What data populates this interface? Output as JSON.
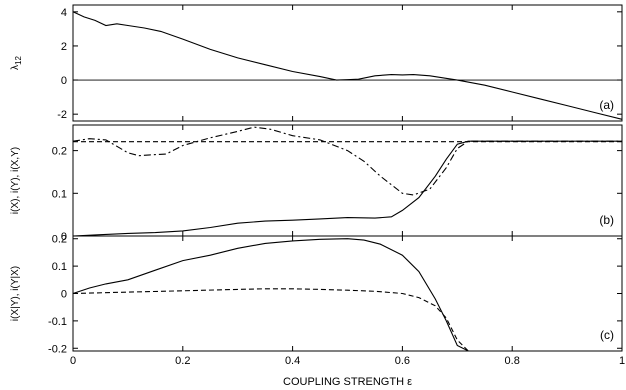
{
  "chart_data": [
    {
      "type": "line",
      "panel_label": "(a)",
      "ylabel": "λ12",
      "ylabel_main": "λ",
      "ylabel_sub": "12",
      "xlim": [
        0,
        1
      ],
      "ylim": [
        -2.4,
        4.4
      ],
      "yticks": [
        -2,
        0,
        2,
        4
      ],
      "hlines": [
        0
      ],
      "series": [
        {
          "style": "solid",
          "x": [
            0,
            0.02,
            0.04,
            0.06,
            0.08,
            0.1,
            0.13,
            0.16,
            0.2,
            0.25,
            0.3,
            0.35,
            0.4,
            0.45,
            0.48,
            0.5,
            0.52,
            0.55,
            0.58,
            0.6,
            0.62,
            0.65,
            0.7,
            0.75,
            0.8,
            0.85,
            0.9,
            0.95,
            1.0
          ],
          "y": [
            4.0,
            3.7,
            3.5,
            3.2,
            3.3,
            3.2,
            3.05,
            2.85,
            2.4,
            1.8,
            1.3,
            0.9,
            0.5,
            0.2,
            0.0,
            0.02,
            0.05,
            0.25,
            0.32,
            0.3,
            0.32,
            0.25,
            0.0,
            -0.3,
            -0.7,
            -1.1,
            -1.5,
            -1.9,
            -2.3
          ]
        }
      ]
    },
    {
      "type": "line",
      "panel_label": "(b)",
      "ylabel": "i(X), i(Y), i(X,Y)",
      "xlim": [
        0,
        1
      ],
      "ylim": [
        0,
        0.26
      ],
      "yticks": [
        0,
        0.1,
        0.2
      ],
      "ytick_labels": [
        "0",
        "0.1",
        "0.2"
      ],
      "series": [
        {
          "style": "dashed",
          "x": [
            0,
            1
          ],
          "y": [
            0.221,
            0.221
          ]
        },
        {
          "style": "dashdot",
          "x": [
            0,
            0.03,
            0.06,
            0.08,
            0.1,
            0.12,
            0.14,
            0.17,
            0.2,
            0.25,
            0.3,
            0.33,
            0.36,
            0.4,
            0.45,
            0.5,
            0.53,
            0.56,
            0.6,
            0.62,
            0.65,
            0.68,
            0.7,
            0.72,
            1.0
          ],
          "y": [
            0.222,
            0.228,
            0.225,
            0.21,
            0.195,
            0.188,
            0.19,
            0.192,
            0.212,
            0.23,
            0.245,
            0.255,
            0.25,
            0.235,
            0.225,
            0.2,
            0.175,
            0.14,
            0.1,
            0.096,
            0.11,
            0.16,
            0.205,
            0.222,
            0.222
          ]
        },
        {
          "style": "solid",
          "x": [
            0,
            0.05,
            0.1,
            0.15,
            0.2,
            0.25,
            0.3,
            0.35,
            0.4,
            0.45,
            0.5,
            0.55,
            0.58,
            0.6,
            0.63,
            0.66,
            0.68,
            0.7,
            0.72,
            1.0
          ],
          "y": [
            0.0,
            0.003,
            0.006,
            0.008,
            0.012,
            0.02,
            0.03,
            0.035,
            0.037,
            0.04,
            0.043,
            0.042,
            0.045,
            0.06,
            0.09,
            0.14,
            0.18,
            0.215,
            0.222,
            0.222
          ]
        }
      ]
    },
    {
      "type": "line",
      "panel_label": "(c)",
      "ylabel": "i(X|Y), i(Y|X)",
      "xlabel": "COUPLING STRENGTH ε",
      "xlim": [
        0,
        1
      ],
      "xticks": [
        0,
        0.2,
        0.4,
        0.6,
        0.8,
        1
      ],
      "xtick_labels": [
        "0",
        "0.2",
        "0.4",
        "0.6",
        "0.8",
        "1"
      ],
      "ylim": [
        -0.21,
        0.21
      ],
      "yticks": [
        -0.2,
        -0.1,
        0,
        0.1,
        0.2
      ],
      "ytick_labels": [
        "-0.2",
        "-0.1",
        "0",
        "0.1",
        "0.2"
      ],
      "series": [
        {
          "style": "solid",
          "x": [
            0,
            0.03,
            0.06,
            0.1,
            0.15,
            0.2,
            0.25,
            0.3,
            0.35,
            0.4,
            0.45,
            0.5,
            0.53,
            0.56,
            0.6,
            0.63,
            0.66,
            0.68,
            0.7,
            0.72,
            1.0
          ],
          "y": [
            0.0,
            0.02,
            0.035,
            0.05,
            0.085,
            0.12,
            0.14,
            0.165,
            0.183,
            0.192,
            0.198,
            0.2,
            0.195,
            0.18,
            0.14,
            0.08,
            -0.02,
            -0.1,
            -0.19,
            -0.21,
            -0.21
          ]
        },
        {
          "style": "dashed",
          "x": [
            0,
            0.1,
            0.2,
            0.3,
            0.35,
            0.4,
            0.45,
            0.5,
            0.55,
            0.6,
            0.63,
            0.66,
            0.68,
            0.7,
            0.72,
            1.0
          ],
          "y": [
            0.0,
            0.005,
            0.01,
            0.015,
            0.017,
            0.017,
            0.015,
            0.012,
            0.008,
            0.0,
            -0.015,
            -0.045,
            -0.09,
            -0.17,
            -0.21,
            -0.21
          ]
        }
      ]
    }
  ]
}
